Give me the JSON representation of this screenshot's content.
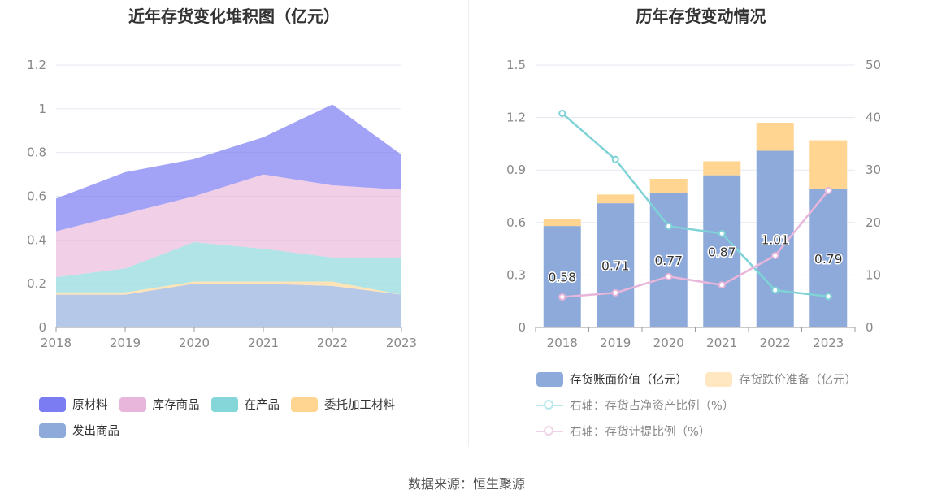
{
  "chart_data": [
    {
      "type": "area",
      "stacked": true,
      "title": "近年存货变化堆积图（亿元）",
      "categories": [
        "2018",
        "2019",
        "2020",
        "2021",
        "2022",
        "2023"
      ],
      "ylim": [
        0,
        1.2
      ],
      "yticks": [
        "0",
        "0.2",
        "0.4",
        "0.6",
        "0.8",
        "1",
        "1.2"
      ],
      "series": [
        {
          "name": "发出商品",
          "color": "#8eaadb",
          "values": [
            0.15,
            0.15,
            0.2,
            0.2,
            0.19,
            0.15
          ]
        },
        {
          "name": "委托加工材料",
          "color": "#ffd591",
          "values": [
            0.01,
            0.01,
            0.01,
            0.01,
            0.02,
            0.0
          ]
        },
        {
          "name": "在产品",
          "color": "#85d6d9",
          "values": [
            0.07,
            0.11,
            0.18,
            0.15,
            0.11,
            0.17
          ]
        },
        {
          "name": "库存商品",
          "color": "#e8b6da",
          "values": [
            0.21,
            0.25,
            0.21,
            0.34,
            0.33,
            0.31
          ]
        },
        {
          "name": "原材料",
          "color": "#7b7bf2",
          "values": [
            0.15,
            0.19,
            0.17,
            0.17,
            0.37,
            0.16
          ]
        }
      ],
      "legend": [
        "原材料",
        "库存商品",
        "在产品",
        "委托加工材料",
        "发出商品"
      ]
    },
    {
      "type": "bar",
      "stacked": true,
      "title": "历年存货变动情况",
      "categories": [
        "2018",
        "2019",
        "2020",
        "2021",
        "2022",
        "2023"
      ],
      "ylim": [
        0,
        1.5
      ],
      "yticks": [
        "0",
        "0.3",
        "0.6",
        "0.9",
        "1.2",
        "1.5"
      ],
      "y2lim": [
        0,
        50
      ],
      "y2ticks": [
        "0",
        "10",
        "20",
        "30",
        "40",
        "50"
      ],
      "series": [
        {
          "name": "存货账面价值（亿元）",
          "kind": "bar",
          "color": "#8eaadb",
          "values": [
            0.58,
            0.71,
            0.77,
            0.87,
            1.01,
            0.79
          ],
          "labels": [
            "0.58",
            "0.71",
            "0.77",
            "0.87",
            "1.01",
            "0.79"
          ]
        },
        {
          "name": "存货跌价准备（亿元）",
          "kind": "bar",
          "color": "#ffd591",
          "values": [
            0.04,
            0.05,
            0.08,
            0.08,
            0.16,
            0.28
          ]
        },
        {
          "name": "右轴：存货占净资产比例（%）",
          "kind": "line",
          "axis": "right",
          "color": "#7fd3d6",
          "values": [
            40.8,
            32.0,
            19.3,
            17.9,
            7.1,
            5.9
          ]
        },
        {
          "name": "右轴：存货计提比例（%）",
          "kind": "line",
          "axis": "right",
          "color": "#e8b6da",
          "values": [
            5.8,
            6.6,
            9.7,
            8.1,
            13.7,
            26.1
          ]
        }
      ]
    }
  ],
  "legend_left": [
    {
      "label": "原材料",
      "color": "#7b7bf2"
    },
    {
      "label": "库存商品",
      "color": "#e8b6da"
    },
    {
      "label": "在产品",
      "color": "#85d6d9"
    },
    {
      "label": "委托加工材料",
      "color": "#ffd591"
    },
    {
      "label": "发出商品",
      "color": "#8eaadb"
    }
  ],
  "legend_right": {
    "bar1": "存货账面价值（亿元）",
    "bar2": "存货跌价准备（亿元）",
    "line1": "右轴：存货占净资产比例（%）",
    "line2": "右轴：存货计提比例（%）"
  },
  "source": "数据来源：恒生聚源"
}
